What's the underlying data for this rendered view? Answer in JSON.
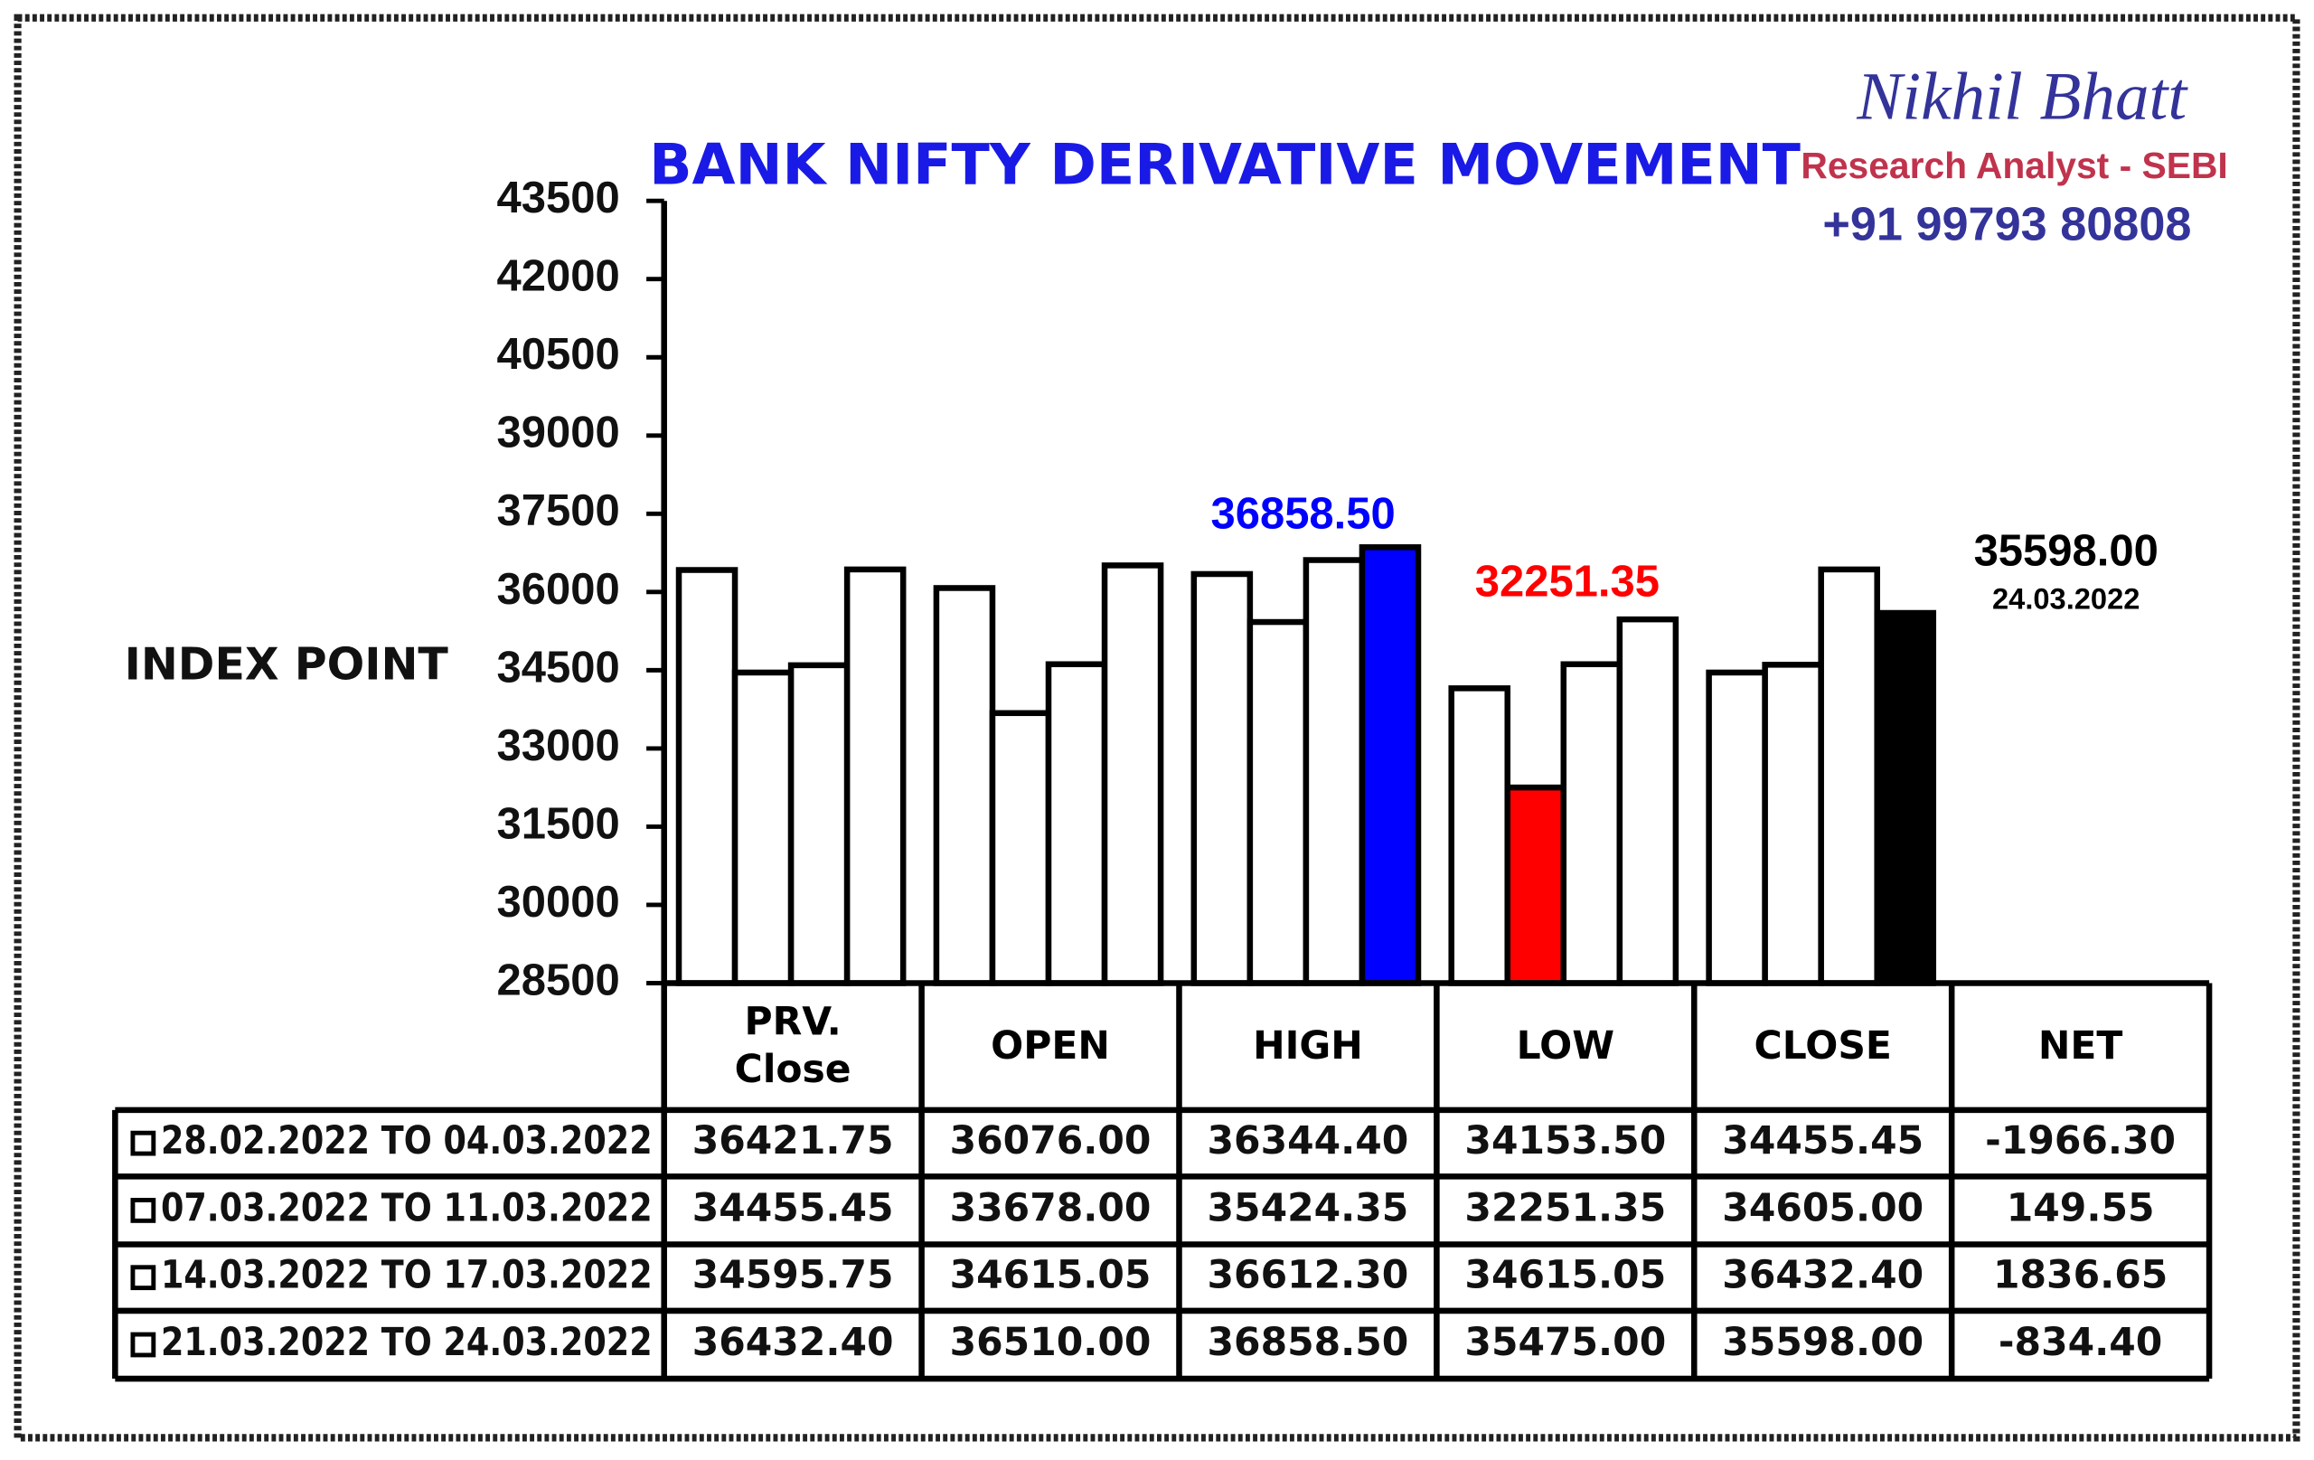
{
  "chart_data": {
    "type": "bar",
    "title": "BANK NIFTY DERIVATIVE MOVEMENT",
    "brand": {
      "name": "Nikhil Bhatt",
      "role": "Research Analyst - SEBI",
      "phone": "+91 99793 80808"
    },
    "y_label": "INDEX POINT",
    "categories": [
      "PRV. Close",
      "OPEN",
      "HIGH",
      "LOW",
      "CLOSE",
      "NET"
    ],
    "ylim": [
      28500,
      43500
    ],
    "yticks": [
      28500,
      30000,
      31500,
      33000,
      34500,
      36000,
      37500,
      39000,
      40500,
      42000,
      43500
    ],
    "series": [
      {
        "name": "28.02.2022 TO 04.03.2022",
        "values": [
          36421.75,
          36076,
          36344.4,
          34153.5,
          34455.45,
          -1966.3
        ],
        "value_labels": [
          "36421.75",
          "36076.00",
          "36344.40",
          "34153.50",
          "34455.45",
          "-1966.30"
        ],
        "colors": [
          "#ffffff",
          "#ffffff",
          "#ffffff",
          "#ffffff",
          "#ffffff",
          "#ffffff"
        ]
      },
      {
        "name": "07.03.2022 TO 11.03.2022",
        "values": [
          34455.45,
          33678,
          35424.35,
          32251.35,
          34605,
          149.55
        ],
        "value_labels": [
          "34455.45",
          "33678.00",
          "35424.35",
          "32251.35",
          "34605.00",
          "149.55"
        ],
        "colors": [
          "#ffffff",
          "#ffffff",
          "#ffffff",
          "#ff0000",
          "#ffffff",
          "#ffffff"
        ]
      },
      {
        "name": "14.03.2022 TO 17.03.2022",
        "values": [
          34595.75,
          34615.05,
          36612.3,
          34615.05,
          36432.4,
          1836.65
        ],
        "value_labels": [
          "34595.75",
          "34615.05",
          "36612.30",
          "34615.05",
          "36432.40",
          "1836.65"
        ],
        "colors": [
          "#ffffff",
          "#ffffff",
          "#ffffff",
          "#ffffff",
          "#ffffff",
          "#ffffff"
        ]
      },
      {
        "name": "21.03.2022 TO 24.03.2022",
        "values": [
          36432.4,
          36510,
          36858.5,
          35475,
          35598,
          -834.4
        ],
        "value_labels": [
          "36432.40",
          "36510.00",
          "36858.50",
          "35475.00",
          "35598.00",
          "-834.40"
        ],
        "colors": [
          "#ffffff",
          "#ffffff",
          "#0000ff",
          "#ffffff",
          "#000000",
          "#ffffff"
        ]
      }
    ],
    "annotations": [
      {
        "text": "36858.50",
        "color": "#0000ff"
      },
      {
        "text": "32251.35",
        "color": "#ff0000"
      },
      {
        "text": "35598.00",
        "color": "#000000"
      },
      {
        "text": "24.03.2022",
        "color": "#000000"
      }
    ]
  }
}
